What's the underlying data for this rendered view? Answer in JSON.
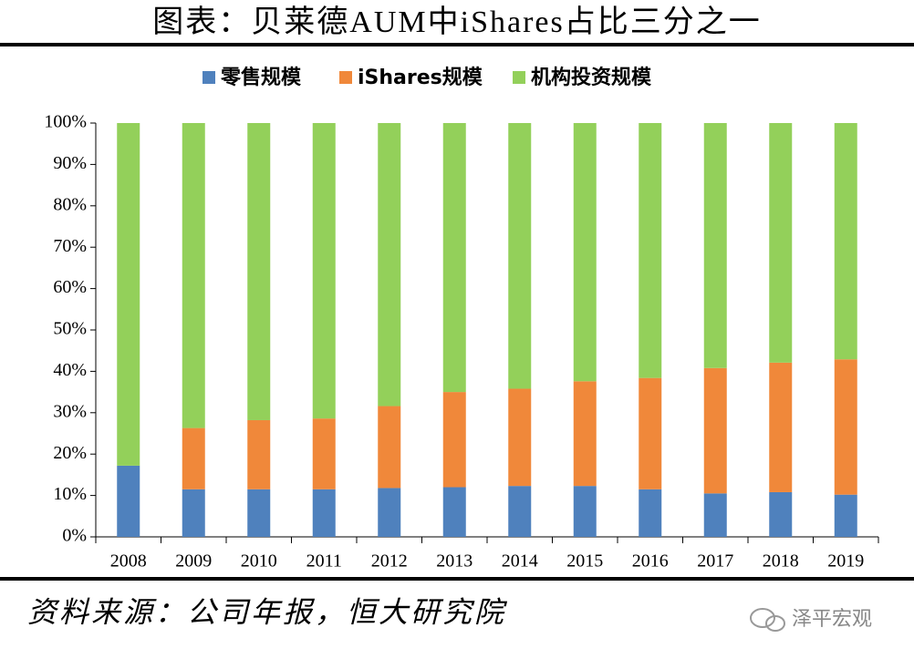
{
  "chart_data": {
    "type": "stacked_bar",
    "title": "图表：贝莱德AUM中iShares占比三分之一",
    "categories": [
      "2008",
      "2009",
      "2010",
      "2011",
      "2012",
      "2013",
      "2014",
      "2015",
      "2016",
      "2017",
      "2018",
      "2019"
    ],
    "series": [
      {
        "name": "零售规模",
        "color": "#4f81bd",
        "values": [
          17.2,
          11.5,
          11.5,
          11.5,
          11.8,
          12.0,
          12.3,
          12.3,
          11.5,
          10.5,
          10.8,
          10.2
        ]
      },
      {
        "name": "iShares规模",
        "color": "#f0883a",
        "values": [
          0,
          14.8,
          16.7,
          17.1,
          19.8,
          23.0,
          23.5,
          25.3,
          26.9,
          30.3,
          31.3,
          32.7
        ]
      },
      {
        "name": "机构投资规模",
        "color": "#93d05a",
        "values": [
          82.8,
          73.7,
          71.8,
          71.4,
          68.4,
          65.0,
          64.2,
          62.4,
          61.6,
          59.2,
          57.9,
          57.1
        ]
      }
    ],
    "ylim": [
      0,
      100
    ],
    "yticks": [
      {
        "value": 0,
        "label": "0%"
      },
      {
        "value": 10,
        "label": "10%"
      },
      {
        "value": 20,
        "label": "20%"
      },
      {
        "value": 30,
        "label": "30%"
      },
      {
        "value": 40,
        "label": "40%"
      },
      {
        "value": 50,
        "label": "50%"
      },
      {
        "value": 60,
        "label": "60%"
      },
      {
        "value": 70,
        "label": "70%"
      },
      {
        "value": 80,
        "label": "80%"
      },
      {
        "value": 90,
        "label": "90%"
      },
      {
        "value": 100,
        "label": "100%"
      }
    ],
    "legend": "top",
    "source": "资料来源：公司年报，恒大研究院",
    "watermark": "泽平宏观"
  }
}
